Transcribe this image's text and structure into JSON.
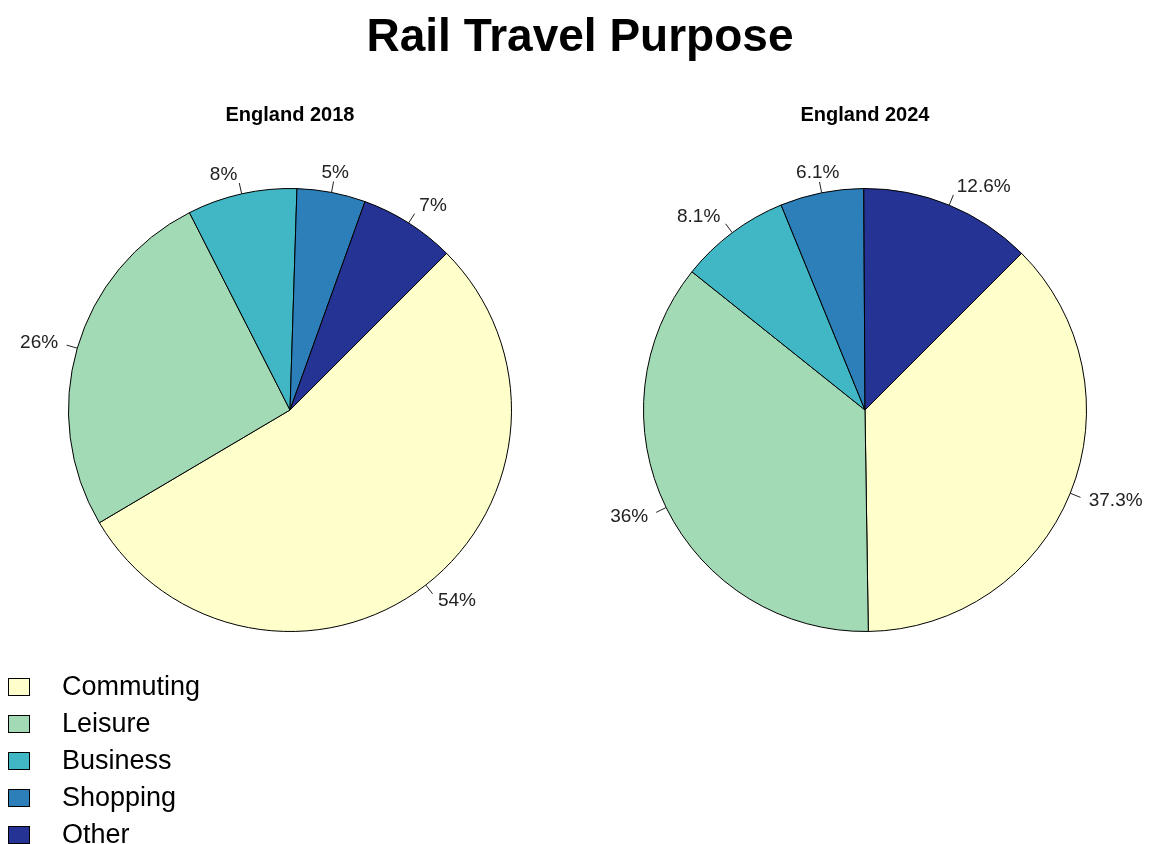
{
  "chart_data": [
    {
      "type": "pie",
      "title": "Rail Travel Purpose",
      "subtitle": "England 2018",
      "categories": [
        "Commuting",
        "Leisure",
        "Business",
        "Shopping",
        "Other"
      ],
      "values": [
        54,
        26,
        8,
        5,
        7
      ],
      "value_labels": [
        "54%",
        "26%",
        "8%",
        "5%",
        "7%"
      ],
      "colors": [
        "#ffffcc",
        "#a1dab4",
        "#41b6c4",
        "#2c7fb8",
        "#253494"
      ],
      "legend": "bottom left"
    },
    {
      "type": "pie",
      "subtitle": "England 2024",
      "values": [
        37.3,
        36,
        8.1,
        6.1,
        12.6
      ],
      "value_labels": [
        "37.3%",
        "36%",
        "8.1%",
        "6.1%",
        "12.6%"
      ],
      "colors": [
        "#ffffcc",
        "#a1dab4",
        "#41b6c4",
        "#2c7fb8",
        "#253494"
      ]
    }
  ]
}
